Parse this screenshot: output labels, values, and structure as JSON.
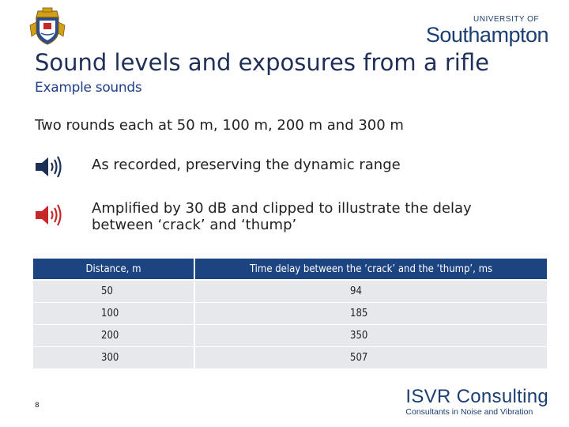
{
  "header": {
    "crest_icon": "university-crest-icon",
    "uni_logo_top": "UNIVERSITY OF",
    "uni_logo_name": "Southampton",
    "brand_color": "#1b3f73"
  },
  "slide": {
    "title": "Sound levels and exposures from a rifle",
    "subtitle": "Example sounds",
    "intro": "Two rounds each at 50 m, 100 m, 200 m and 300 m",
    "sounds": [
      {
        "icon": "speaker-icon",
        "color": "#1c2f55",
        "label": "As recorded, preserving the dynamic range"
      },
      {
        "icon": "speaker-icon",
        "color": "#c62828",
        "label": "Amplified by 30 dB and clipped to illustrate the delay\nbetween ‘crack’ and ‘thump’"
      }
    ]
  },
  "table": {
    "headers": [
      "Distance, m",
      "Time delay between the ‘crack’ and the ‘thump’, ms"
    ],
    "rows": [
      [
        "50",
        "94"
      ],
      [
        "100",
        "185"
      ],
      [
        "200",
        "350"
      ],
      [
        "300",
        "507"
      ]
    ],
    "header_color": "#1c4480",
    "row_color": "#e6e8ec"
  },
  "footer": {
    "page_number": "8",
    "isvr_main": "ISVR Consulting",
    "isvr_sub": "Consultants in Noise and Vibration"
  }
}
